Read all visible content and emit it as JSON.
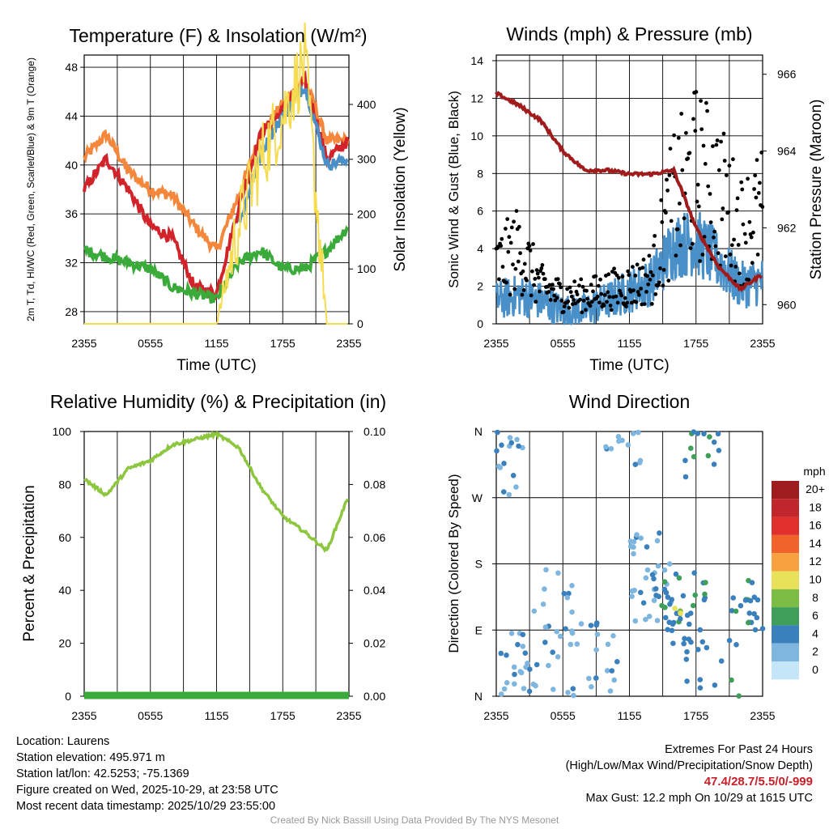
{
  "chart_data": [
    {
      "type": "line",
      "title": "Temperature (F) & Insolation (W/m²)",
      "xlabel": "Time (UTC)",
      "ylabel": "2m T, Td, HI/WC (Red, Green, Scarlet/Blue) & 9m T (Orange)",
      "ylabel_right": "Solar Insolation (Yellow)",
      "x_ticks": [
        "2355",
        "0555",
        "1155",
        "1755",
        "2355"
      ],
      "ylim": [
        27,
        49
      ],
      "y_ticks": [
        28,
        32,
        36,
        40,
        44,
        48
      ],
      "ylim_right": [
        0,
        490
      ],
      "y_ticks_right": [
        0,
        100,
        200,
        300,
        400
      ],
      "x_hours": [
        0,
        2,
        4,
        6,
        8,
        10,
        12,
        14,
        16,
        18,
        20,
        22,
        24
      ],
      "series": [
        {
          "name": "9m T",
          "color": "#f4873b",
          "values": [
            40.6,
            42.5,
            39.5,
            38,
            37.5,
            35,
            33,
            37.5,
            42.5,
            45,
            47,
            42,
            42
          ]
        },
        {
          "name": "2m T",
          "color": "#d2232a",
          "values": [
            38,
            40.5,
            38,
            35,
            34,
            30,
            29.5,
            36.5,
            42.5,
            44.5,
            47,
            40.5,
            42
          ]
        },
        {
          "name": "Dewpoint",
          "color": "#3aaa3a",
          "values": [
            33,
            32.5,
            32,
            31.5,
            30,
            29.5,
            29,
            32,
            33,
            31.5,
            31.5,
            33,
            35
          ]
        },
        {
          "name": "HI/WC",
          "color": "#4a90c8",
          "values": [
            null,
            null,
            null,
            null,
            null,
            null,
            null,
            35,
            41,
            44,
            46.5,
            40,
            40.5
          ]
        },
        {
          "name": "Solar",
          "color": "#f5dc50",
          "axis": "right",
          "values": [
            0,
            0,
            0,
            0,
            0,
            0,
            0,
            180,
            300,
            380,
            480,
            0,
            0
          ]
        }
      ]
    },
    {
      "type": "line",
      "title": "Winds (mph) & Pressure (mb)",
      "xlabel": "Time (UTC)",
      "ylabel": "Sonic Wind & Gust (Blue, Black)",
      "ylabel_right": "Station Pressure (Maroon)",
      "x_ticks": [
        "2355",
        "0555",
        "1155",
        "1755",
        "2355"
      ],
      "ylim": [
        0,
        14.3
      ],
      "y_ticks": [
        0,
        2,
        4,
        6,
        8,
        10,
        12,
        14
      ],
      "ylim_right": [
        959.5,
        966.5
      ],
      "y_ticks_right": [
        960,
        962,
        964,
        966
      ],
      "x_hours": [
        0,
        2,
        4,
        6,
        8,
        10,
        12,
        14,
        16,
        18,
        20,
        22,
        24
      ],
      "series": [
        {
          "name": "Wind",
          "color": "#4a90c8",
          "values": [
            1,
            1.3,
            1,
            0.5,
            0.5,
            1,
            1.5,
            2,
            3.8,
            4,
            3,
            1.8,
            2
          ]
        },
        {
          "name": "Gust",
          "color": "#000000",
          "marker": "dot",
          "values": [
            3,
            4,
            2,
            1.5,
            1.5,
            1.8,
            2,
            2.5,
            6.5,
            8,
            7,
            5,
            6
          ]
        },
        {
          "name": "Pressure",
          "color": "#a01c1c",
          "axis": "right",
          "values": [
            965.5,
            965.2,
            964.8,
            964,
            963.5,
            963.5,
            963.4,
            963.4,
            963.5,
            962,
            961,
            960.4,
            960.8
          ]
        }
      ]
    },
    {
      "type": "line",
      "title": "Relative Humidity (%) & Precipitation (in)",
      "ylabel": "Percent & Precipitation",
      "x_ticks": [
        "2355",
        "0555",
        "1155",
        "1755",
        "2355"
      ],
      "ylim": [
        0,
        100
      ],
      "y_ticks": [
        0,
        20,
        40,
        60,
        80,
        100
      ],
      "ylim_right": [
        0,
        0.1
      ],
      "y_ticks_right": [
        "0.00",
        "0.02",
        "0.04",
        "0.06",
        "0.08",
        "0.10"
      ],
      "x_hours": [
        0,
        2,
        4,
        6,
        8,
        10,
        12,
        14,
        16,
        18,
        20,
        22,
        24
      ],
      "series": [
        {
          "name": "RH",
          "color": "#8dc63f",
          "values": [
            82,
            76,
            86,
            89,
            95,
            97,
            99,
            94,
            79,
            68,
            62,
            55,
            76
          ]
        },
        {
          "name": "Precipitation",
          "color": "#3aaa3a",
          "axis": "right",
          "values": [
            0,
            0,
            0,
            0,
            0,
            0,
            0,
            0,
            0,
            0,
            0,
            0,
            0
          ]
        }
      ]
    },
    {
      "type": "scatter",
      "title": "Wind Direction",
      "ylabel": "Direction (Colored By Speed)",
      "x_ticks": [
        "2355",
        "0555",
        "1155",
        "1755",
        "2355"
      ],
      "y_ticks": [
        "N",
        "E",
        "S",
        "W",
        "N"
      ],
      "ylim": [
        0,
        360
      ],
      "legend_title": "mph",
      "legend_labels": [
        "20+",
        "18",
        "16",
        "14",
        "12",
        "10",
        "8",
        "6",
        "4",
        "2",
        "0"
      ],
      "legend_colors": [
        "#9e1b1e",
        "#c0262b",
        "#e0302d",
        "#f0632b",
        "#f7a140",
        "#e8e25a",
        "#7bbd44",
        "#3e9e5a",
        "#3a80bd",
        "#7eb6e0",
        "#c4e6f8"
      ],
      "clusters": [
        {
          "h": [
            0,
            3
          ],
          "d": [
            0,
            90
          ],
          "speed": 1,
          "n": 20
        },
        {
          "h": [
            0,
            3
          ],
          "d": [
            270,
            360
          ],
          "speed": 1,
          "n": 16
        },
        {
          "h": [
            3,
            7
          ],
          "d": [
            0,
            120
          ],
          "speed": 1,
          "n": 22
        },
        {
          "h": [
            4,
            7
          ],
          "d": [
            120,
            180
          ],
          "speed": 1,
          "n": 8
        },
        {
          "h": [
            7,
            11
          ],
          "d": [
            0,
            100
          ],
          "speed": 1,
          "n": 18
        },
        {
          "h": [
            9,
            13
          ],
          "d": [
            300,
            360
          ],
          "speed": 1,
          "n": 12
        },
        {
          "h": [
            12,
            16
          ],
          "d": [
            90,
            230
          ],
          "speed": 2,
          "n": 30
        },
        {
          "h": [
            14,
            19
          ],
          "d": [
            60,
            170
          ],
          "speed": 4,
          "n": 45
        },
        {
          "h": [
            17,
            22
          ],
          "d": [
            0,
            80
          ],
          "speed": 4,
          "n": 12
        },
        {
          "h": [
            17,
            21
          ],
          "d": [
            290,
            360
          ],
          "speed": 4,
          "n": 14
        },
        {
          "h": [
            21,
            24
          ],
          "d": [
            80,
            160
          ],
          "speed": 3,
          "n": 20
        },
        {
          "h": [
            16,
            17
          ],
          "d": [
            100,
            120
          ],
          "speed": 7,
          "n": 3
        }
      ]
    }
  ],
  "info": {
    "location": "Location: Laurens",
    "elevation": "Station elevation: 495.971 m",
    "latlon": "Station lat/lon: 42.5253; -75.1369",
    "created": "Figure created on Wed, 2025-10-29, at 23:58 UTC",
    "recent": "Most recent data timestamp: 2025/10/29 23:55:00"
  },
  "extremes": {
    "title": "Extremes For Past 24 Hours",
    "subtitle": "(High/Low/Max Wind/Precipitation/Snow Depth)",
    "values": "47.4/28.7/5.5/0/-999",
    "max_gust": "Max Gust: 12.2 mph On 10/29 at 1615 UTC"
  },
  "credit": "Created By Nick Bassill Using Data Provided By The NYS Mesonet"
}
